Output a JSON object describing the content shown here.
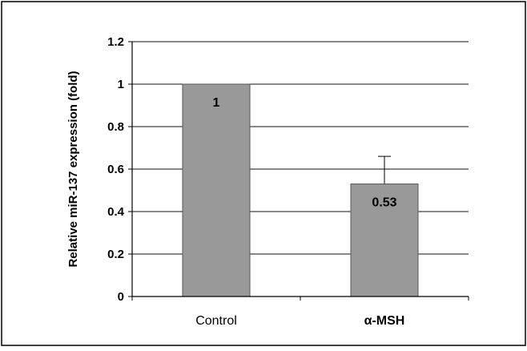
{
  "chart_data": {
    "type": "bar",
    "title": "",
    "xlabel": "",
    "ylabel": "Relative miR-137 expression (fold)",
    "categories": [
      "Control",
      "α-MSH"
    ],
    "values": [
      1,
      0.53
    ],
    "error": [
      null,
      0.13
    ],
    "data_labels": [
      "1",
      "0.53"
    ],
    "ylim": [
      0,
      1.2
    ],
    "yticks": [
      0,
      0.2,
      0.4,
      0.6,
      0.8,
      1,
      1.2
    ],
    "ytick_labels": [
      "0",
      "0.2",
      "0.4",
      "0.6",
      "0.8",
      "1",
      "1.2"
    ],
    "grid": true,
    "legend": "none",
    "colors": {
      "bar": "#999999",
      "bar_edge": "#555555",
      "grid": "#111111",
      "frame": "#000000"
    }
  }
}
